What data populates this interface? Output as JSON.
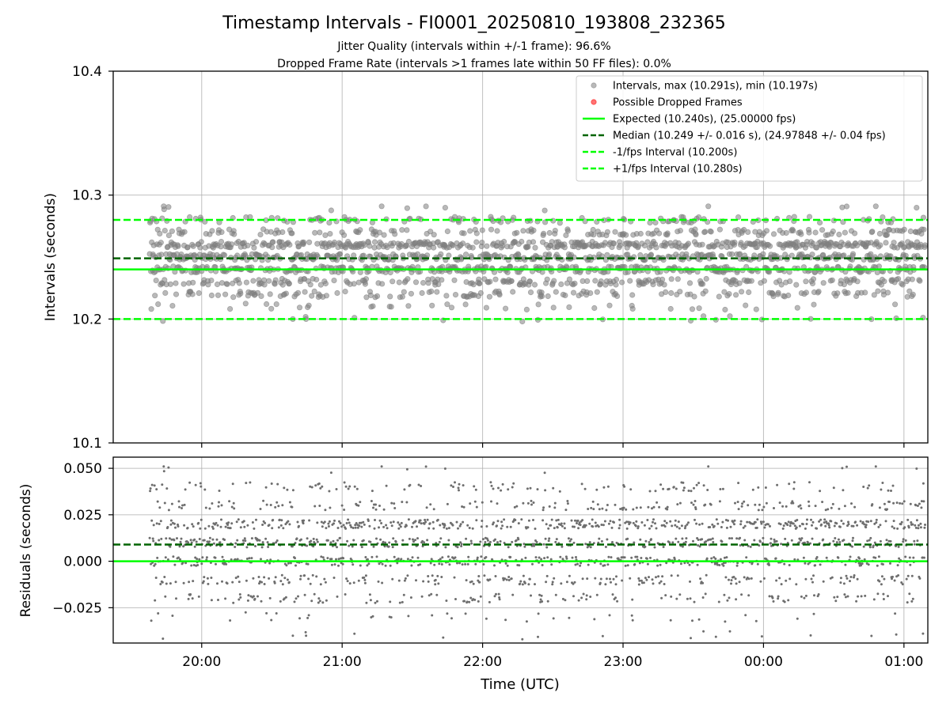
{
  "chart_data": [
    {
      "type": "scatter",
      "title": "Timestamp Intervals - FI0001_20250810_193808_232365",
      "subtitle": [
        "Jitter Quality (intervals within +/-1 frame): 96.6%",
        "Dropped Frame Rate (intervals >1 frames late within 50 FF files): 0.0%"
      ],
      "xlabel": "",
      "ylabel": "Intervals (seconds)",
      "ylim": [
        10.1,
        10.4
      ],
      "yticks": [
        10.1,
        10.2,
        10.3,
        10.4
      ],
      "ytick_labels": [
        "10.1",
        "10.2",
        "10.3",
        "10.4"
      ],
      "xlim_hours": [
        19.37,
        25.17
      ],
      "xticks_hours": [
        20,
        21,
        22,
        23,
        24,
        25
      ],
      "xtick_labels": [
        "20:00",
        "21:00",
        "22:00",
        "23:00",
        "00:00",
        "01:00"
      ],
      "grid": true,
      "legend_position": "top-right",
      "legend": [
        {
          "label": "Intervals, max (10.291s), min (10.197s)",
          "kind": "marker",
          "color": "#808080"
        },
        {
          "label": "Possible Dropped Frames",
          "kind": "marker",
          "color": "#ff0000"
        },
        {
          "label": "Expected (10.240s), (25.00000 fps)",
          "kind": "solid",
          "color": "#00ff00"
        },
        {
          "label": "Median (10.249 +/- 0.016 s), (24.97848 +/- 0.04 fps)",
          "kind": "dashed",
          "color": "#006400"
        },
        {
          "label": "-1/fps Interval (10.200s)",
          "kind": "dashed",
          "color": "#00ff00"
        },
        {
          "label": "+1/fps Interval (10.280s)",
          "kind": "dashed",
          "color": "#00ff00"
        }
      ],
      "x_start_hours": 19.63,
      "x_end_hours": 25.15,
      "point_count": 1940,
      "interval_levels": [
        10.2,
        10.21,
        10.22,
        10.23,
        10.24,
        10.25,
        10.26,
        10.27,
        10.28,
        10.29
      ],
      "interval_level_weights": [
        0.01,
        0.02,
        0.08,
        0.1,
        0.2,
        0.2,
        0.22,
        0.1,
        0.06,
        0.01
      ],
      "interval_jitter": 0.0025,
      "max_interval": 10.291,
      "min_interval": 10.197,
      "dropped_frames": [],
      "reference_lines": {
        "expected": 10.24,
        "median": 10.249,
        "minus_one_fps": 10.2,
        "plus_one_fps": 10.28
      },
      "colors": {
        "points": "#808080",
        "dropped": "#ff0000",
        "expected": "#00ff00",
        "median": "#006400",
        "bounds": "#00ff00",
        "grid": "#b0b0b0"
      }
    },
    {
      "type": "scatter",
      "title": "",
      "xlabel": "Time (UTC)",
      "ylabel": "Residuals (seconds)",
      "ylim": [
        -0.044,
        0.056
      ],
      "yticks": [
        -0.025,
        0.0,
        0.025,
        0.05
      ],
      "ytick_labels": [
        "−0.025",
        "0.000",
        "0.025",
        "0.050"
      ],
      "xlim_hours": [
        19.37,
        25.17
      ],
      "xticks_hours": [
        20,
        21,
        22,
        23,
        24,
        25
      ],
      "xtick_labels": [
        "20:00",
        "21:00",
        "22:00",
        "23:00",
        "00:00",
        "01:00"
      ],
      "grid": true,
      "residual_reference": 10.24,
      "reference_lines": {
        "zero": 0.0,
        "median": 0.009
      },
      "colors": {
        "points": "#6e6e6e",
        "zero": "#00ff00",
        "median": "#006400",
        "grid": "#b0b0b0"
      }
    }
  ]
}
